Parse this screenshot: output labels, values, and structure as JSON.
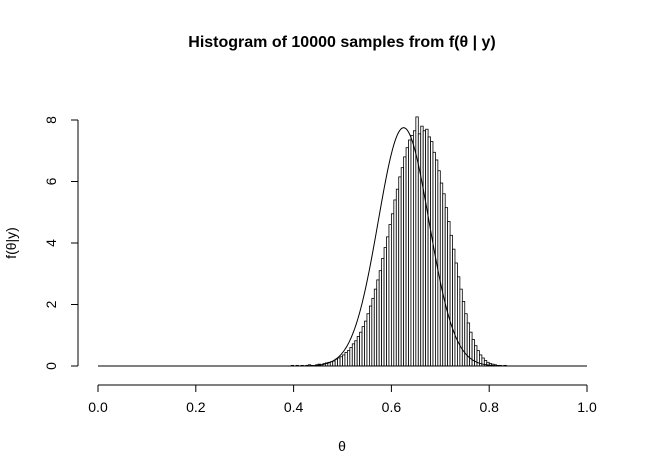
{
  "chart_data": {
    "type": "bar",
    "title": "Histogram of 10000 samples from f(θ | y)",
    "xlabel": "θ",
    "ylabel": "f(θ|y)",
    "xlim": [
      0,
      1
    ],
    "ylim": [
      0,
      8
    ],
    "x_ticks": [
      "0.0",
      "0.2",
      "0.4",
      "0.6",
      "0.8",
      "1.0"
    ],
    "x_tick_values": [
      0,
      0.2,
      0.4,
      0.6,
      0.8,
      1.0
    ],
    "y_ticks": [
      "0",
      "2",
      "4",
      "6",
      "8"
    ],
    "y_tick_values": [
      0,
      2,
      4,
      6,
      8
    ],
    "grid": false,
    "bin_width": 0.005,
    "bins_start": 0.395,
    "bin_heights": [
      0.02,
      0.0,
      0.02,
      0.0,
      0.02,
      0.0,
      0.02,
      0.04,
      0.02,
      0.0,
      0.04,
      0.06,
      0.04,
      0.08,
      0.1,
      0.12,
      0.14,
      0.16,
      0.22,
      0.26,
      0.3,
      0.36,
      0.44,
      0.5,
      0.6,
      0.72,
      0.82,
      0.96,
      1.1,
      1.28,
      1.46,
      1.7,
      1.95,
      2.2,
      2.5,
      2.8,
      3.1,
      3.5,
      3.85,
      4.2,
      4.6,
      4.95,
      5.4,
      5.75,
      6.15,
      6.45,
      6.8,
      7.1,
      7.35,
      7.5,
      7.65,
      8.1,
      7.55,
      7.8,
      7.65,
      7.7,
      7.45,
      7.3,
      6.95,
      6.7,
      6.35,
      5.95,
      5.6,
      5.15,
      4.7,
      4.25,
      3.8,
      3.35,
      2.9,
      2.5,
      2.1,
      1.7,
      1.4,
      1.1,
      0.86,
      0.66,
      0.5,
      0.36,
      0.26,
      0.18,
      0.12,
      0.08,
      0.06,
      0.04,
      0.02,
      0.02,
      0.0,
      0.02
    ],
    "density_curve": {
      "type": "line",
      "mode": 0.625,
      "sd": 0.052,
      "peak": 7.75
    }
  }
}
